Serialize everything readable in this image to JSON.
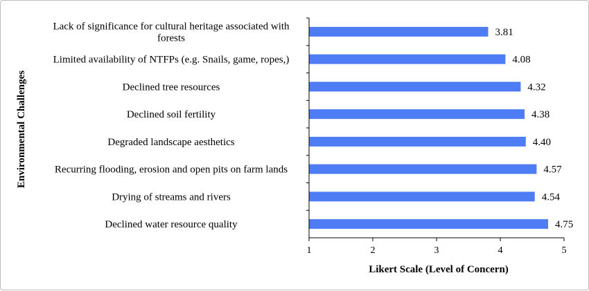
{
  "chart_data": {
    "type": "bar",
    "orientation": "horizontal",
    "categories": [
      [
        "Lack of significance for cultural heritage associated with",
        "forests"
      ],
      [
        "Limited availability of NTFPs (e.g. Snails, game, ropes,)"
      ],
      [
        "Declined tree resources"
      ],
      [
        "Declined soil fertility"
      ],
      [
        "Degraded landscape aesthetics"
      ],
      [
        "Recurring flooding, erosion and open pits on farm lands"
      ],
      [
        "Drying of streams and rivers"
      ],
      [
        "Declined water resource quality"
      ]
    ],
    "values": [
      3.81,
      4.08,
      4.32,
      4.38,
      4.4,
      4.57,
      4.54,
      4.75
    ],
    "value_labels": [
      "3.81",
      "4.08",
      "4.32",
      "4.38",
      "4.40",
      "4.57",
      "4.54",
      "4.75"
    ],
    "xlabel": "Likert Scale (Level of Concern)",
    "ylabel": "Environmental Challenges",
    "xlim": [
      1,
      5
    ],
    "xticks": [
      "1",
      "2",
      "3",
      "4",
      "5"
    ],
    "bar_color": "#4d7cf4",
    "grid": false,
    "legend": "none"
  }
}
